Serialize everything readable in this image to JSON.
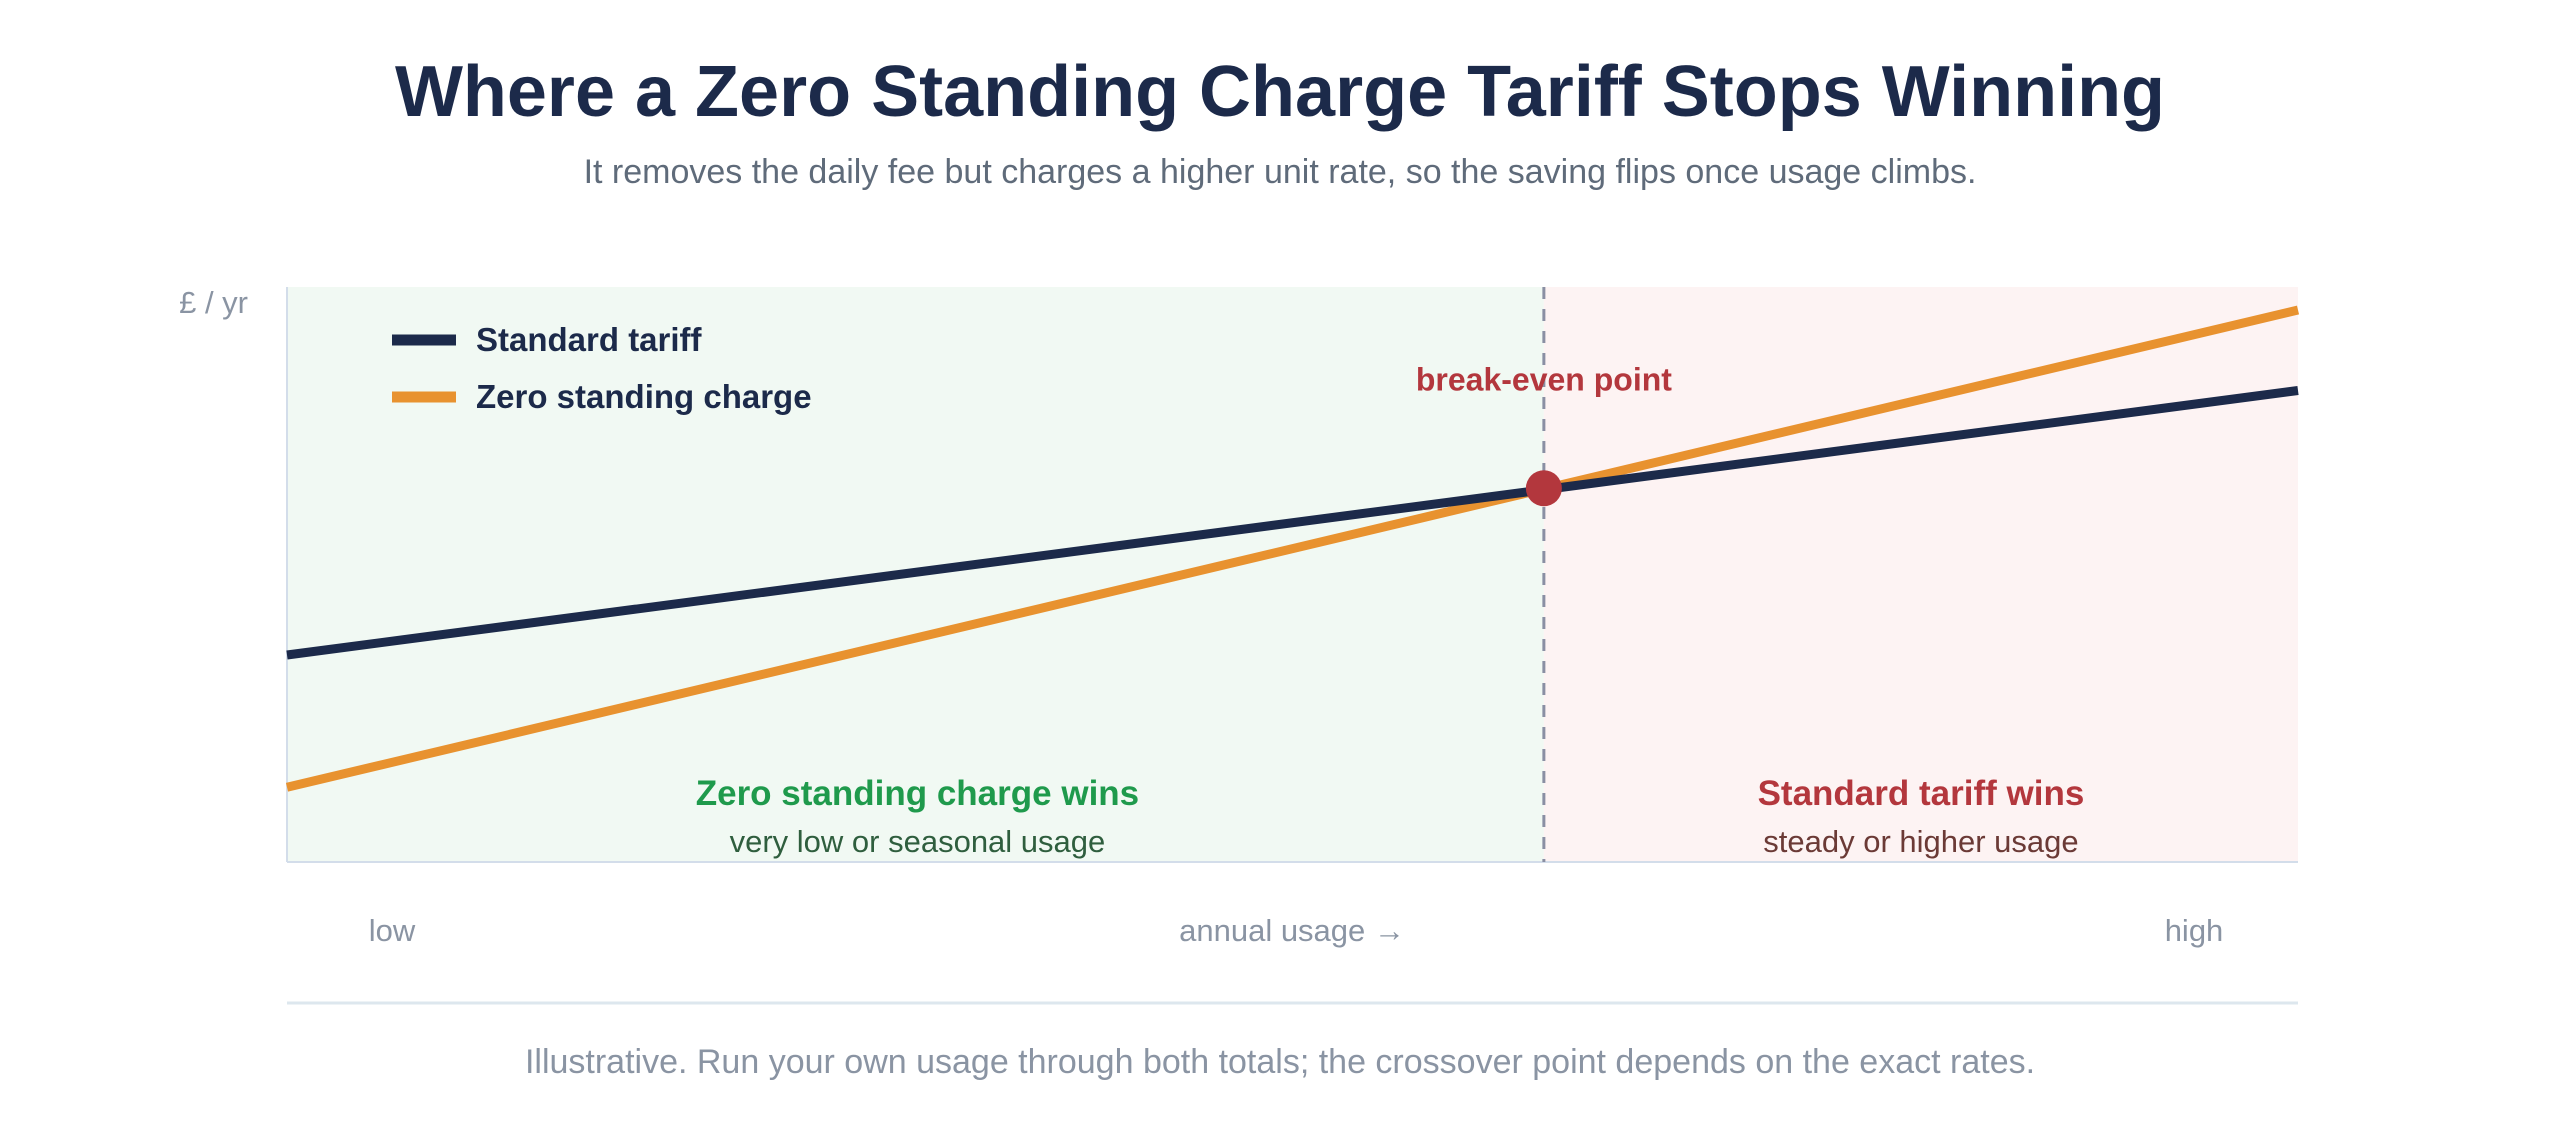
{
  "title": "Where a Zero Standing Charge Tariff Stops Winning",
  "subtitle": "It removes the daily fee but charges a higher unit rate, so the saving flips once usage climbs.",
  "footnote": "Illustrative. Run your own usage through both totals; the crossover point depends on the exact rates.",
  "colors": {
    "standard": "#1c2a4a",
    "zero": "#e8922f",
    "breakeven": "#b3373d",
    "zero_region": "#f1f9f3",
    "standard_region": "#fdf3f3",
    "zero_wins_text": "#1f9a4c",
    "zero_wins_sub": "#2f5e3e",
    "standard_wins_text": "#b3373d",
    "standard_wins_sub": "#6b3a36"
  },
  "chart_data": {
    "type": "line",
    "title": "Where a Zero Standing Charge Tariff Stops Winning",
    "xlabel": "annual usage →",
    "ylabel": "£ / yr",
    "x_tick_labels": {
      "low": "low",
      "high": "high"
    },
    "xlim": [
      0,
      100
    ],
    "ylim": [
      0,
      100
    ],
    "series": [
      {
        "name": "Standard tariff",
        "x": [
          0,
          100
        ],
        "y": [
          36,
          82
        ]
      },
      {
        "name": "Zero standing charge",
        "x": [
          0,
          100
        ],
        "y": [
          13,
          96
        ]
      }
    ],
    "legend": {
      "placement": "top-left"
    },
    "breakeven": {
      "x": 62.5,
      "y": 65,
      "label": "break-even point"
    },
    "regions": [
      {
        "name": "Zero standing charge wins",
        "sublabel": "very low or seasonal usage",
        "x_from": 0,
        "x_to": 62.5
      },
      {
        "name": "Standard tariff wins",
        "sublabel": "steady or higher usage",
        "x_from": 62.5,
        "x_to": 100
      }
    ],
    "grid": false
  }
}
